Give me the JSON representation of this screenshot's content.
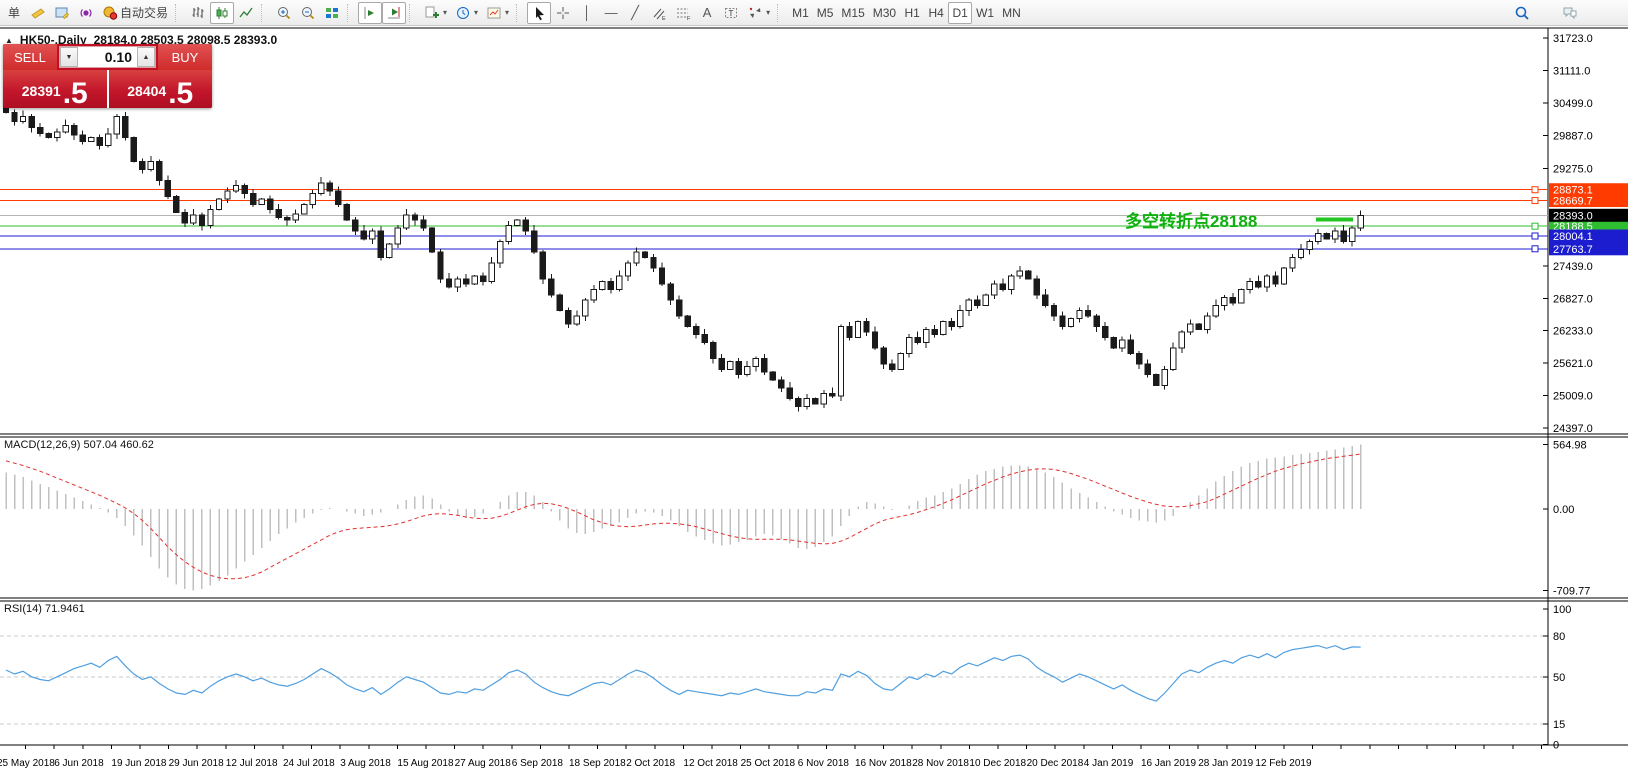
{
  "toolbar": {
    "timeframes": [
      "M1",
      "M5",
      "M15",
      "M30",
      "H1",
      "H4",
      "D1",
      "W1",
      "MN"
    ],
    "active_timeframe": "D1",
    "groups": [
      [
        {
          "name": "new-order-button",
          "label": "单"
        },
        {
          "name": "terminal-icon",
          "icon": "terminal"
        },
        {
          "name": "metaeditor-icon",
          "icon": "editor"
        },
        {
          "name": "signals-icon",
          "icon": "signals"
        },
        {
          "name": "autotrading-button",
          "icon": "autotrading",
          "label": "自动交易"
        }
      ],
      [
        {
          "name": "bar-chart-icon",
          "icon": "bars"
        },
        {
          "name": "candlestick-chart-icon",
          "icon": "candles",
          "active": true
        },
        {
          "name": "line-chart-icon",
          "icon": "linechart"
        }
      ],
      [
        {
          "name": "zoom-in-icon",
          "icon": "zoomin"
        },
        {
          "name": "zoom-out-icon",
          "icon": "zoomout"
        },
        {
          "name": "tile-windows-icon",
          "icon": "tiles"
        }
      ],
      [
        {
          "name": "auto-scroll-icon",
          "icon": "autoscroll",
          "active": true
        },
        {
          "name": "chart-shift-icon",
          "icon": "shift",
          "active": true
        }
      ],
      [
        {
          "name": "new-chart-button",
          "icon": "newchart",
          "dropdown": true
        },
        {
          "name": "periods-button",
          "icon": "clock",
          "dropdown": true
        },
        {
          "name": "templates-button",
          "icon": "template",
          "dropdown": true
        }
      ],
      [
        {
          "name": "cursor-icon",
          "icon": "cursor",
          "active": true
        },
        {
          "name": "crosshair-icon",
          "icon": "crosshair"
        },
        {
          "name": "vertical-line-icon",
          "glyph": "│"
        },
        {
          "name": "horizontal-line-icon",
          "glyph": "—"
        },
        {
          "name": "trendline-icon",
          "glyph": "╱"
        },
        {
          "name": "equidistant-channel-icon",
          "icon": "channel"
        },
        {
          "name": "fibonacci-icon",
          "icon": "fibo"
        },
        {
          "name": "text-icon",
          "glyph": "A"
        },
        {
          "name": "text-label-icon",
          "icon": "textlabel"
        },
        {
          "name": "arrows-button",
          "icon": "arrows",
          "dropdown": true
        }
      ]
    ],
    "right_icons": [
      {
        "name": "search-icon",
        "icon": "search"
      },
      {
        "name": "chat-icon",
        "icon": "chat"
      }
    ]
  },
  "chart": {
    "collapse_glyph": "▲",
    "title": "HK50-,Daily",
    "ohlc_text": "28184.0 28503.5 28098.5 28393.0"
  },
  "one_click": {
    "sell_label": "SELL",
    "buy_label": "BUY",
    "volume": "0.10",
    "volume_down_glyph": "▼",
    "volume_up_glyph": "▲",
    "sell_price_int": "28391",
    "sell_price_dec": ".5",
    "buy_price_int": "28404",
    "buy_price_dec": ".5"
  },
  "annotation": {
    "text": "多空转折点28188",
    "color": "#0db00d"
  },
  "levels": [
    {
      "price": 28873.1,
      "label": "28873.1",
      "color": "#ff3b00"
    },
    {
      "price": 28669.7,
      "label": "28669.7",
      "color": "#ff3b00"
    },
    {
      "price": 28188.5,
      "label": "28188.5",
      "color": "#2fbe2f"
    },
    {
      "price": 28004.1,
      "label": "28004.1",
      "color": "#1d1dd0"
    },
    {
      "price": 27763.7,
      "label": "27763.7",
      "color": "#1d1dd0"
    }
  ],
  "current_price": {
    "price": 28393.0,
    "label": "28393.0",
    "box_color": "#000000",
    "line_color": "#b4b4b4",
    "text_color": "#ffffff"
  },
  "indicators": {
    "macd": "MACD(12,26,9) 507.04 460.62",
    "rsi": "RSI(14) 71.9461"
  },
  "axes": {
    "price_ticks": [
      "31723.0",
      "31111.0",
      "30499.0",
      "29887.0",
      "29275.0",
      "27439.0",
      "26827.0",
      "26233.0",
      "25621.0",
      "25009.0",
      "24397.0"
    ],
    "macd_ticks": [
      "564.98",
      "0.00",
      "-709.77"
    ],
    "rsi_ticks": [
      "100",
      "80",
      "50",
      "15",
      "0"
    ],
    "rsi_dashed_levels": [
      80,
      50,
      15
    ],
    "dates": [
      "25 May 2018",
      "6 Jun 2018",
      "19 Jun 2018",
      "29 Jun 2018",
      "12 Jul 2018",
      "24 Jul 2018",
      "3 Aug 2018",
      "15 Aug 2018",
      "27 Aug 2018",
      "6 Sep 2018",
      "18 Sep 2018",
      "2 Oct 2018",
      "12 Oct 2018",
      "25 Oct 2018",
      "6 Nov 2018",
      "16 Nov 2018",
      "28 Nov 2018",
      "10 Dec 2018",
      "20 Dec 2018",
      "4 Jan 2019",
      "16 Jan 2019",
      "28 Jan 2019",
      "12 Feb 2019"
    ]
  },
  "chart_data": {
    "type": "candlestick",
    "symbol": "HK50-",
    "timeframe": "Daily",
    "ohlc_current": {
      "open": 28184.0,
      "high": 28503.5,
      "low": 28098.5,
      "close": 28393.0
    },
    "price_range_visible": [
      24397.0,
      31723.0
    ],
    "note": "series values estimated from pixels",
    "closes": [
      30320,
      30150,
      30250,
      30040,
      29930,
      29850,
      29960,
      30080,
      29900,
      29780,
      29850,
      29700,
      29920,
      30250,
      29850,
      29400,
      29250,
      29400,
      29050,
      28750,
      28450,
      28250,
      28400,
      28200,
      28500,
      28700,
      28850,
      28950,
      28800,
      28600,
      28700,
      28500,
      28350,
      28300,
      28420,
      28600,
      28800,
      29000,
      28850,
      28600,
      28300,
      28100,
      27950,
      28100,
      27600,
      27850,
      28150,
      28400,
      28300,
      28150,
      27700,
      27200,
      27050,
      27200,
      27100,
      27250,
      27150,
      27500,
      27900,
      28200,
      28300,
      28100,
      27700,
      27200,
      26900,
      26600,
      26350,
      26500,
      26800,
      27000,
      27150,
      27000,
      27250,
      27500,
      27700,
      27600,
      27400,
      27100,
      26800,
      26500,
      26300,
      26150,
      26000,
      25700,
      25500,
      25650,
      25400,
      25550,
      25700,
      25450,
      25300,
      25150,
      24950,
      24800,
      24950,
      24850,
      25050,
      25000,
      26300,
      26100,
      26400,
      26200,
      25900,
      25600,
      25500,
      25800,
      26100,
      26000,
      26250,
      26150,
      26400,
      26300,
      26600,
      26800,
      26700,
      26900,
      27100,
      27000,
      27250,
      27350,
      27200,
      26900,
      26700,
      26500,
      26300,
      26450,
      26600,
      26500,
      26300,
      26100,
      25900,
      26050,
      25800,
      25600,
      25400,
      25200,
      25500,
      25900,
      26200,
      26350,
      26250,
      26500,
      26700,
      26850,
      26750,
      27000,
      27150,
      27050,
      27250,
      27100,
      27400,
      27600,
      27750,
      27900,
      28050,
      27950,
      28100,
      27900,
      28150,
      28393
    ],
    "macd": {
      "current": [
        507.04,
        460.62
      ],
      "axis_range": [
        -709.77,
        564.98
      ],
      "histogram": [
        320,
        300,
        280,
        250,
        220,
        190,
        160,
        130,
        100,
        70,
        40,
        10,
        -30,
        -80,
        -150,
        -230,
        -320,
        -420,
        -520,
        -600,
        -660,
        -700,
        -710,
        -700,
        -670,
        -630,
        -580,
        -520,
        -460,
        -400,
        -340,
        -280,
        -220,
        -170,
        -120,
        -80,
        -40,
        -10,
        10,
        0,
        -20,
        -40,
        -60,
        -50,
        -30,
        0,
        40,
        80,
        110,
        120,
        90,
        40,
        -20,
        -60,
        -80,
        -70,
        -40,
        0,
        60,
        120,
        150,
        150,
        120,
        60,
        -20,
        -100,
        -170,
        -210,
        -220,
        -200,
        -170,
        -150,
        -120,
        -80,
        -40,
        -20,
        -30,
        -60,
        -100,
        -150,
        -200,
        -240,
        -270,
        -300,
        -320,
        -310,
        -290,
        -270,
        -240,
        -220,
        -230,
        -260,
        -300,
        -340,
        -350,
        -330,
        -290,
        -240,
        -150,
        -60,
        20,
        60,
        50,
        20,
        -10,
        0,
        30,
        70,
        100,
        120,
        150,
        180,
        220,
        260,
        300,
        330,
        350,
        370,
        380,
        380,
        370,
        350,
        320,
        280,
        230,
        180,
        140,
        100,
        60,
        20,
        -20,
        -50,
        -80,
        -100,
        -110,
        -120,
        -100,
        -60,
        0,
        60,
        120,
        180,
        240,
        290,
        330,
        370,
        400,
        420,
        440,
        450,
        460,
        470,
        480,
        490,
        500,
        510,
        520,
        535,
        550,
        565
      ],
      "signal": [
        420,
        400,
        380,
        355,
        330,
        300,
        270,
        240,
        210,
        180,
        150,
        120,
        85,
        50,
        10,
        -40,
        -100,
        -170,
        -250,
        -330,
        -400,
        -460,
        -510,
        -550,
        -580,
        -600,
        -610,
        -610,
        -600,
        -580,
        -550,
        -510,
        -470,
        -430,
        -390,
        -350,
        -310,
        -270,
        -230,
        -200,
        -180,
        -170,
        -165,
        -160,
        -155,
        -145,
        -130,
        -110,
        -85,
        -60,
        -45,
        -40,
        -45,
        -55,
        -70,
        -80,
        -85,
        -80,
        -65,
        -40,
        -10,
        20,
        40,
        50,
        45,
        30,
        5,
        -25,
        -60,
        -95,
        -120,
        -140,
        -150,
        -155,
        -150,
        -140,
        -130,
        -125,
        -125,
        -130,
        -140,
        -155,
        -175,
        -195,
        -215,
        -235,
        -250,
        -260,
        -265,
        -265,
        -265,
        -265,
        -270,
        -280,
        -290,
        -300,
        -305,
        -300,
        -280,
        -250,
        -210,
        -170,
        -130,
        -100,
        -80,
        -65,
        -50,
        -30,
        -5,
        20,
        50,
        80,
        115,
        150,
        185,
        220,
        250,
        280,
        305,
        325,
        340,
        350,
        350,
        345,
        330,
        310,
        285,
        260,
        230,
        200,
        170,
        140,
        110,
        85,
        60,
        40,
        25,
        20,
        20,
        30,
        45,
        65,
        95,
        130,
        165,
        200,
        235,
        270,
        300,
        330,
        355,
        375,
        395,
        410,
        425,
        440,
        450,
        460,
        470,
        480
      ]
    },
    "rsi": {
      "current": 71.9461,
      "levels": [
        80,
        50,
        15
      ],
      "values": [
        55,
        52,
        54,
        50,
        48,
        47,
        50,
        53,
        56,
        58,
        60,
        57,
        62,
        65,
        58,
        52,
        48,
        50,
        45,
        41,
        38,
        37,
        40,
        38,
        43,
        47,
        50,
        52,
        50,
        47,
        49,
        46,
        44,
        43,
        45,
        48,
        52,
        56,
        53,
        49,
        44,
        41,
        39,
        42,
        37,
        41,
        46,
        50,
        48,
        46,
        42,
        38,
        37,
        39,
        38,
        41,
        40,
        44,
        48,
        53,
        55,
        52,
        46,
        42,
        39,
        37,
        36,
        39,
        42,
        45,
        46,
        44,
        48,
        52,
        55,
        53,
        49,
        44,
        40,
        37,
        40,
        39,
        38,
        37,
        36,
        38,
        37,
        39,
        41,
        39,
        38,
        37,
        36,
        36,
        39,
        38,
        41,
        40,
        52,
        50,
        54,
        51,
        45,
        41,
        40,
        45,
        50,
        48,
        52,
        50,
        54,
        52,
        57,
        60,
        58,
        61,
        64,
        62,
        65,
        66,
        63,
        57,
        53,
        50,
        46,
        49,
        52,
        50,
        47,
        44,
        41,
        44,
        40,
        37,
        34,
        32,
        38,
        45,
        52,
        55,
        53,
        57,
        60,
        62,
        60,
        64,
        66,
        64,
        67,
        64,
        68,
        70,
        71,
        72,
        73,
        71,
        73,
        70,
        72,
        71.9
      ]
    }
  }
}
